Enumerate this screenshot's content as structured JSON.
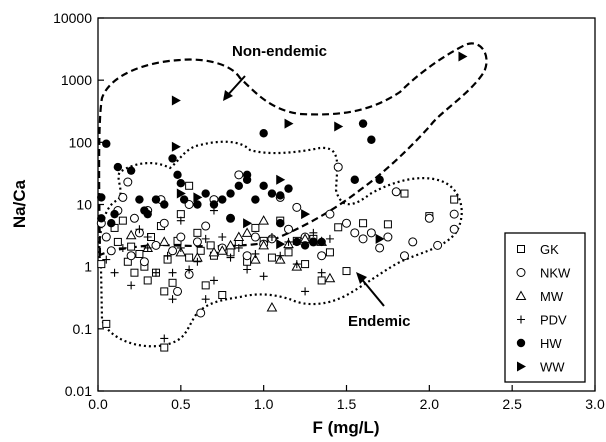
{
  "chart_data": {
    "type": "scatter",
    "title": "",
    "xlabel": "F (mg/L)",
    "ylabel": "Na/Ca",
    "xlim": [
      0,
      3
    ],
    "ylim": [
      0.01,
      10000
    ],
    "yscale": "log",
    "grid": false,
    "legend_position": "bottom-right",
    "x_ticks": [
      "0.0",
      "0.5",
      "1.0",
      "1.5",
      "2.0",
      "2.5",
      "3.0"
    ],
    "y_ticks": [
      "0.01",
      "0.1",
      "1",
      "10",
      "100",
      "1000",
      "10000"
    ],
    "annotations": [
      {
        "text": "Non-endemic"
      },
      {
        "text": "Endemic"
      }
    ],
    "series": [
      {
        "name": "GK",
        "marker": "open-square",
        "points": [
          [
            0.02,
            1.1
          ],
          [
            0.05,
            0.12
          ],
          [
            0.1,
            4.2
          ],
          [
            0.15,
            5.5
          ],
          [
            0.2,
            2.1
          ],
          [
            0.22,
            0.8
          ],
          [
            0.25,
            1.6
          ],
          [
            0.28,
            1.0
          ],
          [
            0.3,
            0.6
          ],
          [
            0.32,
            3.0
          ],
          [
            0.35,
            0.8
          ],
          [
            0.38,
            4.5
          ],
          [
            0.4,
            0.4
          ],
          [
            0.42,
            1.3
          ],
          [
            0.45,
            0.55
          ],
          [
            0.48,
            2.6
          ],
          [
            0.5,
            7.0
          ],
          [
            0.55,
            1.4
          ],
          [
            0.6,
            3.5
          ],
          [
            0.62,
            1.8
          ],
          [
            0.65,
            0.5
          ],
          [
            0.68,
            2.2
          ],
          [
            0.7,
            1.5
          ],
          [
            0.75,
            0.35
          ],
          [
            0.8,
            1.7
          ],
          [
            0.85,
            2.5
          ],
          [
            0.9,
            1.2
          ],
          [
            0.95,
            4.2
          ],
          [
            1.0,
            2.6
          ],
          [
            1.05,
            1.4
          ],
          [
            1.1,
            5.5
          ],
          [
            1.15,
            1.7
          ],
          [
            1.2,
            2.6
          ],
          [
            1.25,
            1.1
          ],
          [
            1.3,
            2.8
          ],
          [
            1.35,
            0.6
          ],
          [
            1.4,
            1.7
          ],
          [
            1.45,
            4.3
          ],
          [
            1.5,
            0.85
          ],
          [
            1.6,
            5.0
          ],
          [
            1.75,
            4.8
          ],
          [
            1.85,
            15.0
          ],
          [
            2.0,
            6.5
          ],
          [
            2.15,
            12.0
          ],
          [
            0.4,
            0.05
          ],
          [
            0.12,
            2.5
          ],
          [
            0.18,
            1.2
          ],
          [
            0.55,
            20.0
          ]
        ]
      },
      {
        "name": "NKW",
        "marker": "open-circle",
        "points": [
          [
            0.02,
            5.0
          ],
          [
            0.05,
            3.0
          ],
          [
            0.08,
            1.8
          ],
          [
            0.12,
            8.0
          ],
          [
            0.15,
            13.0
          ],
          [
            0.18,
            23.0
          ],
          [
            0.2,
            1.5
          ],
          [
            0.22,
            6.0
          ],
          [
            0.25,
            3.5
          ],
          [
            0.28,
            1.2
          ],
          [
            0.3,
            8.0
          ],
          [
            0.35,
            2.2
          ],
          [
            0.38,
            12.0
          ],
          [
            0.4,
            5.0
          ],
          [
            0.45,
            1.8
          ],
          [
            0.5,
            3.0
          ],
          [
            0.55,
            10.0
          ],
          [
            0.6,
            2.5
          ],
          [
            0.62,
            0.18
          ],
          [
            0.65,
            4.5
          ],
          [
            0.7,
            12.0
          ],
          [
            0.75,
            2.0
          ],
          [
            0.8,
            6.0
          ],
          [
            0.85,
            30.0
          ],
          [
            0.9,
            1.5
          ],
          [
            0.95,
            3.0
          ],
          [
            1.0,
            2.3
          ],
          [
            1.05,
            2.8
          ],
          [
            1.1,
            13.0
          ],
          [
            1.15,
            4.0
          ],
          [
            1.2,
            9.0
          ],
          [
            1.25,
            3.0
          ],
          [
            1.3,
            2.5
          ],
          [
            1.35,
            1.5
          ],
          [
            1.4,
            7.0
          ],
          [
            1.45,
            40.0
          ],
          [
            1.5,
            5.0
          ],
          [
            1.55,
            3.5
          ],
          [
            1.6,
            2.8
          ],
          [
            1.65,
            3.5
          ],
          [
            1.7,
            2.0
          ],
          [
            1.75,
            3.0
          ],
          [
            1.8,
            16.0
          ],
          [
            1.85,
            1.5
          ],
          [
            1.9,
            2.5
          ],
          [
            2.0,
            6.0
          ],
          [
            2.05,
            2.2
          ],
          [
            2.15,
            7.0
          ],
          [
            2.15,
            4.0
          ],
          [
            0.55,
            0.75
          ],
          [
            0.48,
            0.4
          ]
        ]
      },
      {
        "name": "MW",
        "marker": "open-triangle",
        "points": [
          [
            0.2,
            3.2
          ],
          [
            0.3,
            2.0
          ],
          [
            0.4,
            2.5
          ],
          [
            0.5,
            1.7
          ],
          [
            0.6,
            1.4
          ],
          [
            0.7,
            1.7
          ],
          [
            0.75,
            1.8
          ],
          [
            0.8,
            2.2
          ],
          [
            0.85,
            3.0
          ],
          [
            0.9,
            3.5
          ],
          [
            0.95,
            1.3
          ],
          [
            1.0,
            2.2
          ],
          [
            1.05,
            0.22
          ],
          [
            1.1,
            1.3
          ],
          [
            1.15,
            2.3
          ],
          [
            1.25,
            2.8
          ],
          [
            1.35,
            2.5
          ],
          [
            1.4,
            0.65
          ],
          [
            1.0,
            5.5
          ],
          [
            1.2,
            1.0
          ]
        ]
      },
      {
        "name": "PDV",
        "marker": "plus",
        "points": [
          [
            0.05,
            1.3
          ],
          [
            0.1,
            0.8
          ],
          [
            0.15,
            2.0
          ],
          [
            0.2,
            0.5
          ],
          [
            0.25,
            4.0
          ],
          [
            0.3,
            3.0
          ],
          [
            0.35,
            0.8
          ],
          [
            0.4,
            0.07
          ],
          [
            0.42,
            1.5
          ],
          [
            0.45,
            0.3
          ],
          [
            0.5,
            2.0
          ],
          [
            0.55,
            0.9
          ],
          [
            0.6,
            1.2
          ],
          [
            0.65,
            2.8
          ],
          [
            0.7,
            0.6
          ],
          [
            0.75,
            3.0
          ],
          [
            0.8,
            1.4
          ],
          [
            0.85,
            2.0
          ],
          [
            0.9,
            0.9
          ],
          [
            0.95,
            1.6
          ],
          [
            1.0,
            0.7
          ],
          [
            1.05,
            3.0
          ],
          [
            1.1,
            1.5
          ],
          [
            1.15,
            2.5
          ],
          [
            1.2,
            1.1
          ],
          [
            1.25,
            0.4
          ],
          [
            1.3,
            3.5
          ],
          [
            1.35,
            0.8
          ],
          [
            1.4,
            2.8
          ],
          [
            0.3,
            2.0
          ],
          [
            0.5,
            5.5
          ],
          [
            0.7,
            8.0
          ],
          [
            0.65,
            0.3
          ],
          [
            0.45,
            0.8
          ]
        ]
      },
      {
        "name": "HW",
        "marker": "filled-circle",
        "points": [
          [
            0.02,
            13.0
          ],
          [
            0.02,
            6.0
          ],
          [
            0.05,
            95.0
          ],
          [
            0.08,
            5.0
          ],
          [
            0.1,
            7.0
          ],
          [
            0.12,
            40.0
          ],
          [
            0.2,
            35.0
          ],
          [
            0.25,
            12.0
          ],
          [
            0.28,
            8.0
          ],
          [
            0.3,
            7.0
          ],
          [
            0.35,
            12.0
          ],
          [
            0.4,
            10.0
          ],
          [
            0.45,
            55.0
          ],
          [
            0.48,
            30.0
          ],
          [
            0.5,
            22.0
          ],
          [
            0.52,
            12.0
          ],
          [
            0.6,
            10.0
          ],
          [
            0.65,
            15.0
          ],
          [
            0.7,
            10.0
          ],
          [
            0.75,
            12.0
          ],
          [
            0.8,
            15.0
          ],
          [
            0.85,
            20.0
          ],
          [
            0.9,
            25.0
          ],
          [
            0.95,
            12.0
          ],
          [
            1.0,
            140.0
          ],
          [
            1.0,
            20.0
          ],
          [
            1.05,
            15.0
          ],
          [
            1.1,
            14.0
          ],
          [
            1.15,
            18.0
          ],
          [
            1.2,
            2.5
          ],
          [
            1.25,
            2.2
          ],
          [
            1.3,
            2.5
          ],
          [
            1.35,
            2.5
          ],
          [
            1.55,
            25.0
          ],
          [
            1.6,
            200.0
          ],
          [
            1.65,
            110.0
          ],
          [
            1.7,
            25.0
          ],
          [
            0.8,
            6.0
          ],
          [
            0.9,
            30.0
          ],
          [
            1.1,
            5.0
          ]
        ]
      },
      {
        "name": "WW",
        "marker": "filled-triangle-right",
        "points": [
          [
            0.47,
            470.0
          ],
          [
            0.47,
            85.0
          ],
          [
            0.5,
            15.0
          ],
          [
            0.6,
            13.0
          ],
          [
            0.9,
            5.0
          ],
          [
            1.1,
            25.0
          ],
          [
            1.15,
            200.0
          ],
          [
            1.25,
            7.0
          ],
          [
            1.45,
            180.0
          ],
          [
            1.7,
            2.8
          ],
          [
            2.2,
            2400.0
          ],
          [
            1.1,
            2.3
          ]
        ]
      }
    ]
  }
}
